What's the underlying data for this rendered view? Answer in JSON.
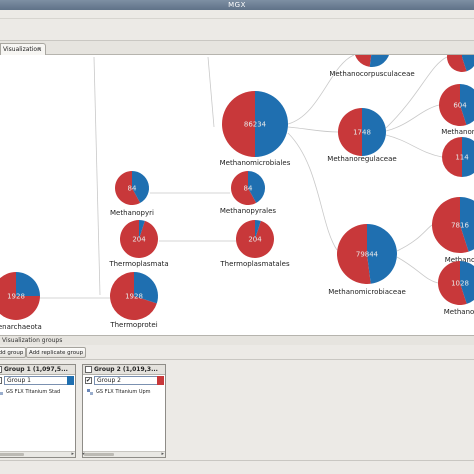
{
  "window": {
    "title": "MGX"
  },
  "tab": {
    "label": "Visualization",
    "close": "×"
  },
  "canvas": {
    "colors": {
      "red": "#c8383a",
      "blue": "#1f6fb0",
      "edge": "#c9c9c9"
    },
    "nodes": [
      {
        "id": "methanocorpusculaceae",
        "label": "Methanocorpusculaceae",
        "value": ""
      },
      {
        "id": "methanomicrobiales",
        "label": "Methanomicrobiales",
        "value": "86234"
      },
      {
        "id": "methanoregulaceae",
        "label": "Methanoregulaceae",
        "value": "1748"
      },
      {
        "id": "methanopyri",
        "label": "Methanopyri",
        "value": "84"
      },
      {
        "id": "methanopyrales",
        "label": "Methanopyrales",
        "value": "84"
      },
      {
        "id": "thermoplasmata",
        "label": "Thermoplasmata",
        "value": "204"
      },
      {
        "id": "thermoplasmatales",
        "label": "Thermoplasmatales",
        "value": "204"
      },
      {
        "id": "methanomicrobiaceae",
        "label": "Methanomicrobiaceae",
        "value": "79844"
      },
      {
        "id": "crenarchaeota",
        "label": "Crenarchaeota",
        "value": "1928"
      },
      {
        "id": "thermoprotei",
        "label": "Thermoprotei",
        "value": "1928"
      },
      {
        "id": "right-top",
        "label": "",
        "value": ""
      },
      {
        "id": "methanore",
        "label": "Methanore",
        "value": "604"
      },
      {
        "id": "right-mid",
        "label": "",
        "value": "114"
      },
      {
        "id": "methano-right",
        "label": "Methano",
        "value": "7816"
      },
      {
        "id": "methanol-right",
        "label": "Methanol",
        "value": "1028"
      }
    ]
  },
  "bottom": {
    "header": "Visualization groups",
    "buttons": {
      "add_group": "Add group",
      "add_replicate": "Add replicate group"
    },
    "groups": [
      {
        "title": "Group 1 (1,097,5...",
        "name": "Group 1",
        "checked": "",
        "color": "#1f6fb0",
        "item": "GS FLX Titanium Stad"
      },
      {
        "title": "Group 2 (1,019,3...",
        "name": "Group 2",
        "checked": "✔",
        "color": "#c8383a",
        "item": "GS FLX Titanium Upm"
      }
    ]
  }
}
